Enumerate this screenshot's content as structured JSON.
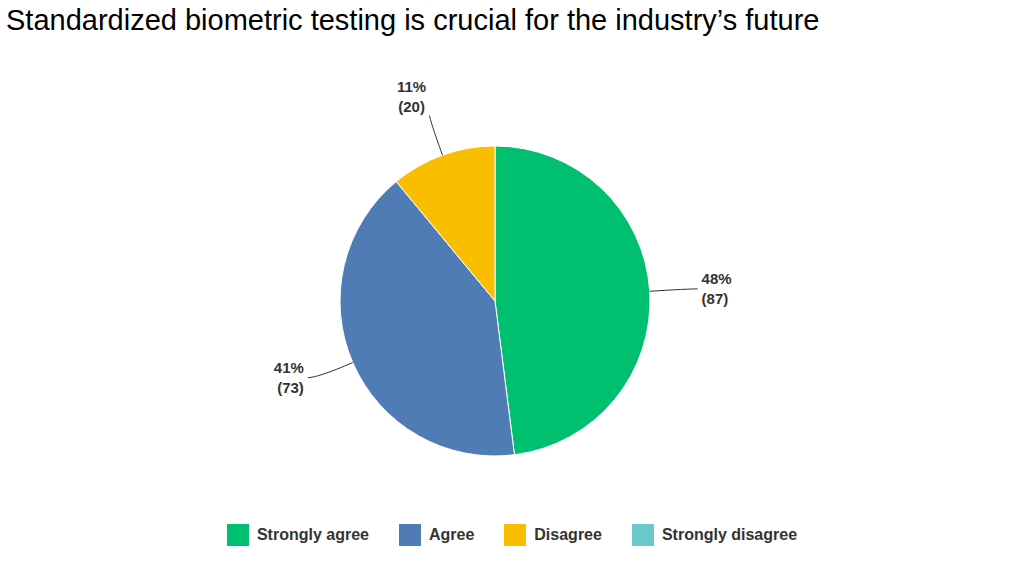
{
  "chart_data": {
    "type": "pie",
    "title": "Standardized biometric testing is crucial for the industry’s future",
    "categories": [
      "Strongly agree",
      "Agree",
      "Disagree",
      "Strongly disagree"
    ],
    "values": [
      48,
      41,
      11,
      0
    ],
    "value_labels": [
      "48%",
      "41%",
      "11%",
      null
    ],
    "counts": [
      87,
      73,
      20,
      0
    ],
    "count_labels": [
      "(87)",
      "(73)",
      "(20)",
      null
    ],
    "colors": [
      "#00bf6f",
      "#507cb6",
      "#f9be00",
      "#6bc8cd"
    ],
    "data_labels": true,
    "legend": "bottom"
  }
}
